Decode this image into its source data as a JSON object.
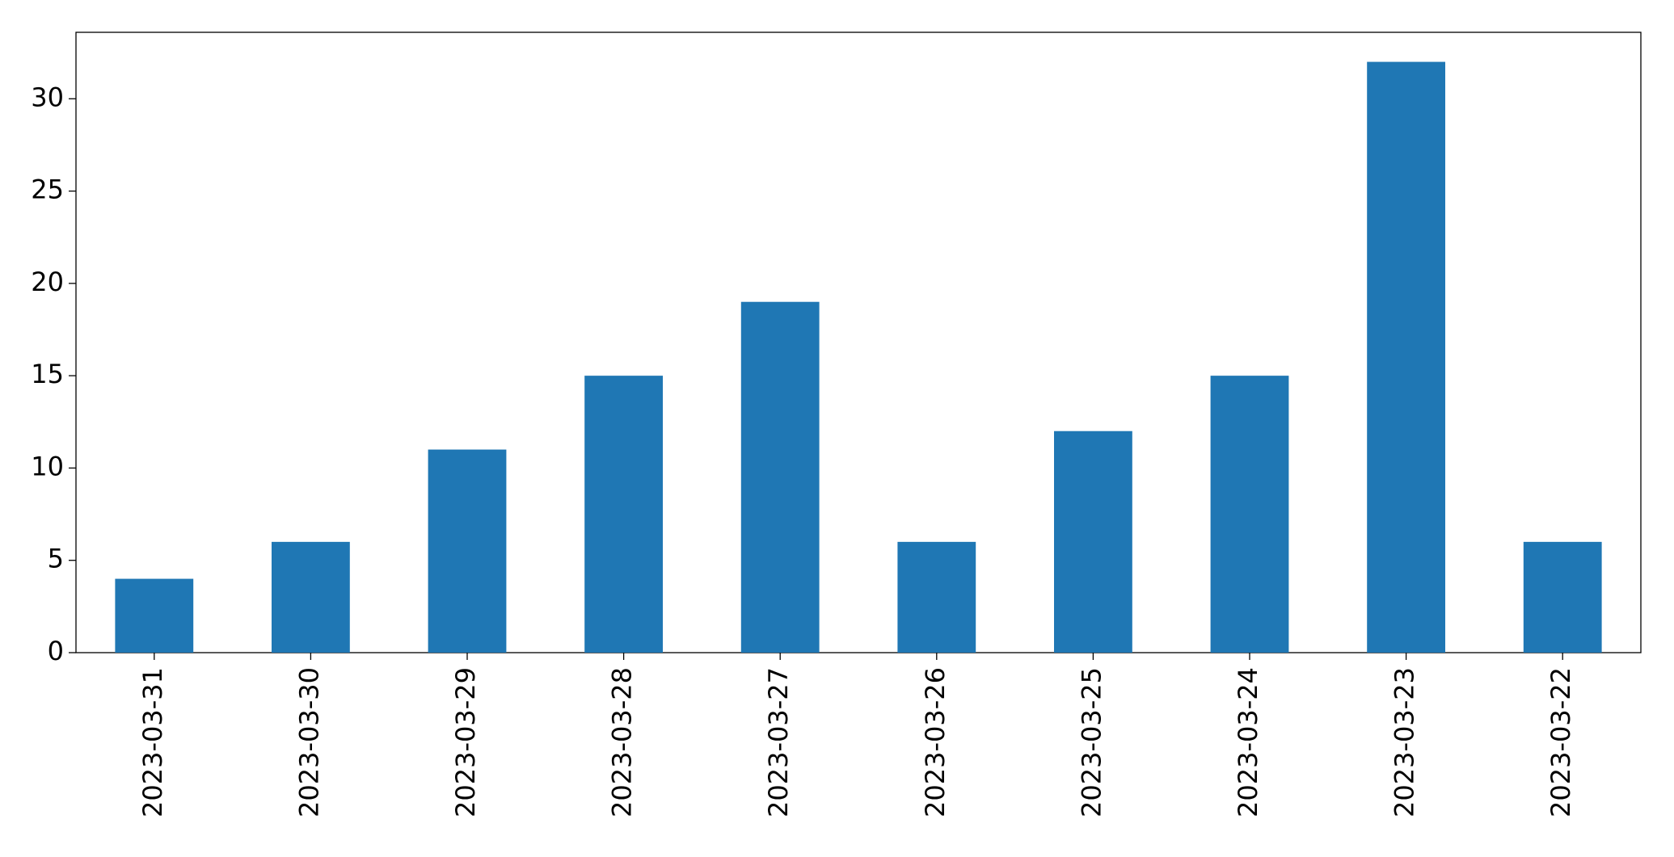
{
  "chart_data": {
    "type": "bar",
    "categories": [
      "2023-03-31",
      "2023-03-30",
      "2023-03-29",
      "2023-03-28",
      "2023-03-27",
      "2023-03-26",
      "2023-03-25",
      "2023-03-24",
      "2023-03-23",
      "2023-03-22"
    ],
    "values": [
      4,
      6,
      11,
      15,
      19,
      6,
      12,
      15,
      32,
      6
    ],
    "color": "#1f77b4",
    "ylim": [
      0,
      33.6
    ],
    "yticks": [
      0,
      5,
      10,
      15,
      20,
      25,
      30
    ],
    "grid": false
  }
}
